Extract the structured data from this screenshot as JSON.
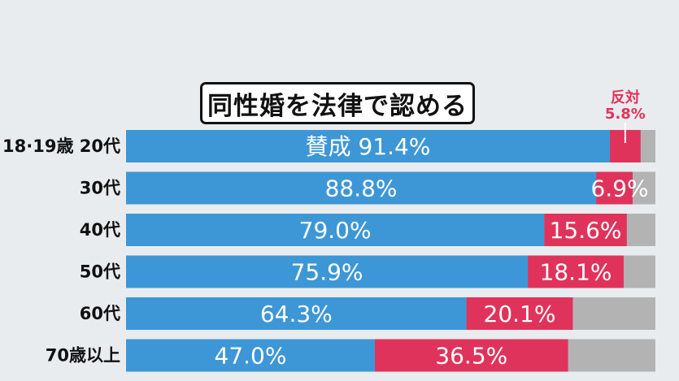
{
  "chart_data": {
    "type": "bar",
    "orientation": "horizontal",
    "stacked": true,
    "title": "同性婚を法律で認める",
    "categories": [
      "18·19歳 20代",
      "30代",
      "40代",
      "50代",
      "60代",
      "70歳以上"
    ],
    "series": [
      {
        "name": "賛成",
        "values": [
          91.4,
          88.8,
          79.0,
          75.9,
          64.3,
          47.0
        ],
        "labels": [
          "賛成 91.4%",
          "88.8%",
          "79.0%",
          "75.9%",
          "64.3%",
          "47.0%"
        ]
      },
      {
        "name": "反対",
        "values": [
          5.8,
          6.9,
          15.6,
          18.1,
          20.1,
          36.5
        ],
        "labels": [
          "",
          "6.9%",
          "15.6%",
          "18.1%",
          "20.1%",
          "36.5%"
        ]
      }
    ],
    "oppose_callout": {
      "line1": "反対",
      "line2": "5.8%"
    },
    "xlim": [
      0,
      100
    ],
    "grid": false,
    "legend": "none",
    "colors": {
      "support": "#3d97d6",
      "oppose": "#e0335b",
      "other": "#b3b3b3"
    }
  }
}
